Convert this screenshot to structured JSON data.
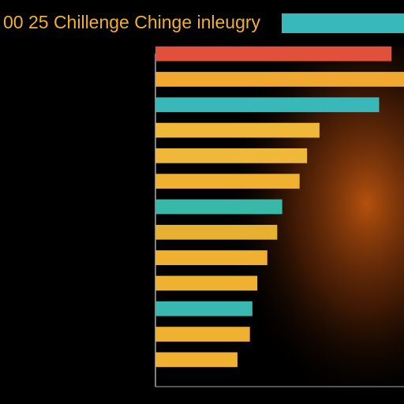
{
  "chart_data": {
    "type": "bar",
    "orientation": "horizontal",
    "title": "00 25 Chillenge Chinge inleugry",
    "categories": [
      null,
      null,
      null,
      null,
      null,
      null,
      null,
      null,
      null,
      null,
      null,
      null,
      null
    ],
    "values": [
      95,
      100,
      90,
      66,
      61,
      58,
      51,
      49,
      45,
      41,
      39,
      38,
      33
    ],
    "colors": [
      "#e0503a",
      "#f0a830",
      "#38b8b8",
      "#f0b838",
      "#f0b838",
      "#f0b030",
      "#38b8a8",
      "#e8b030",
      "#f0b030",
      "#f0b030",
      "#38b8b0",
      "#f0b030",
      "#f0b030"
    ],
    "xlim": [
      0,
      100
    ]
  }
}
